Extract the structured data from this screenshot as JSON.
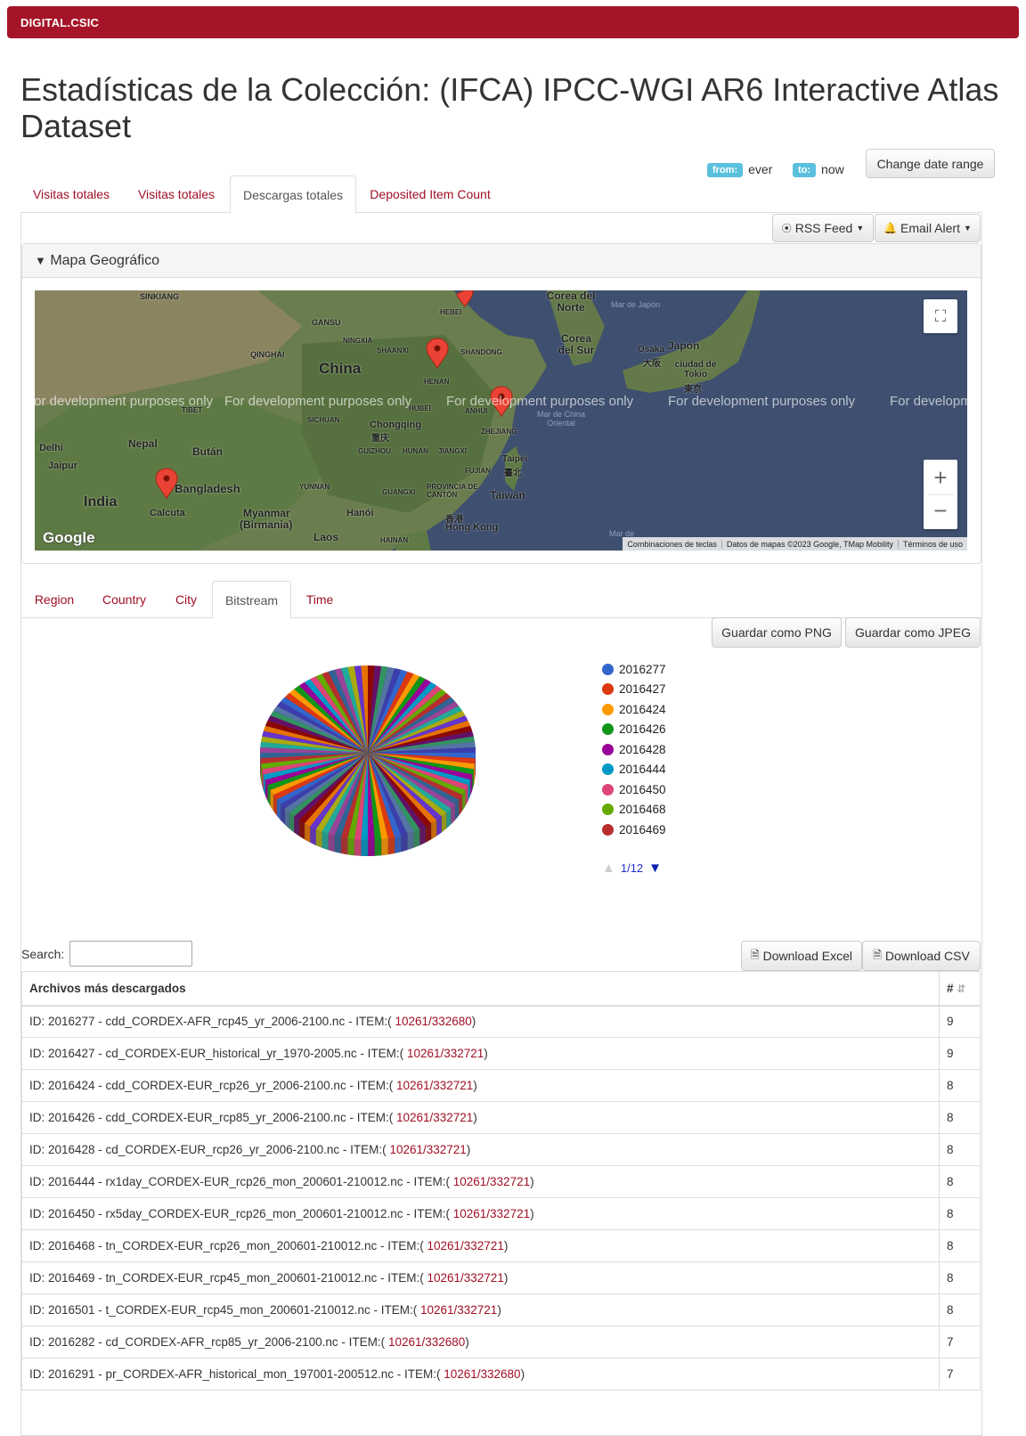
{
  "brand": "DIGITAL.CSIC",
  "page_title": "Estadísticas de la Colección: (IFCA) IPCC-WGI AR6 Interactive Atlas Dataset",
  "date_range": {
    "from_label": "from:",
    "from_value": "ever",
    "to_label": "to:",
    "to_value": "now",
    "change_button": "Change date range"
  },
  "main_tabs": [
    "Visitas totales",
    "Visitas totales",
    "Descargas totales",
    "Deposited Item Count"
  ],
  "toolbar": {
    "rss": "RSS Feed",
    "email": "Email Alert"
  },
  "geo_panel": {
    "title": "Mapa Geográfico",
    "dev_text": "For development purposes only",
    "attribution": [
      "Combinaciones de teclas",
      "Datos de mapas ©2023 Google, TMap Mobility",
      "Términos de uso"
    ],
    "google_logo": "Google",
    "labels": [
      "SINKIANG",
      "GANSU",
      "QINGHAI",
      "NINGXIA",
      "SHAANXI",
      "SHANDONG",
      "China",
      "HENAN",
      "HUBEI",
      "ANHUI",
      "ZHEJIANG",
      "SICHUAN",
      "Chongqing",
      "重庆",
      "GUIZHOU",
      "HUNAN",
      "JIANGXI",
      "FUJIAN",
      "Taipéi",
      "臺北",
      "Taiwán",
      "YUNNAN",
      "GUANGXI",
      "PROVINCIA DE CANTÓN",
      "香港",
      "Hong Kong",
      "Hanói",
      "Laos",
      "HAINAN",
      "Myanmar",
      "(Birmania)",
      "Nepal",
      "Bután",
      "Bangladesh",
      "India",
      "Calcuta",
      "Delhi",
      "Jaipur",
      "Corea del Norte",
      "Corea del Sur",
      "Mar de Japón",
      "Japón",
      "Osaka",
      "大阪",
      "ciudad de Tokio",
      "東京",
      "Mar de China Oriental",
      "HEBEI",
      "TIBET",
      "Mar de"
    ]
  },
  "chart_tabs": [
    "Region",
    "Country",
    "City",
    "Bitstream",
    "Time"
  ],
  "chart_buttons": {
    "png": "Guardar como PNG",
    "jpeg": "Guardar como JPEG"
  },
  "chart_data": {
    "type": "pie",
    "categories": [
      "2016277",
      "2016427",
      "2016424",
      "2016426",
      "2016428",
      "2016444",
      "2016450",
      "2016468",
      "2016469"
    ],
    "colors": [
      "#3366cc",
      "#dc3912",
      "#ff9900",
      "#109618",
      "#990099",
      "#0099c6",
      "#dd4477",
      "#66aa00",
      "#b82e2e"
    ],
    "legend_page": "1/12",
    "legend_position": "right"
  },
  "table": {
    "search_label": "Search:",
    "download_excel": "Download Excel",
    "download_csv": "Download CSV",
    "header": {
      "name": "Archivos más descargados",
      "count": "#"
    },
    "rows": [
      {
        "text": "ID: 2016277 - cdd_CORDEX-AFR_rcp45_yr_2006-2100.nc - ITEM:( ",
        "link": "10261/332680",
        "close": ")",
        "count": "9"
      },
      {
        "text": "ID: 2016427 - cd_CORDEX-EUR_historical_yr_1970-2005.nc - ITEM:( ",
        "link": "10261/332721",
        "close": ")",
        "count": "9"
      },
      {
        "text": "ID: 2016424 - cdd_CORDEX-EUR_rcp26_yr_2006-2100.nc - ITEM:( ",
        "link": "10261/332721",
        "close": ")",
        "count": "8"
      },
      {
        "text": "ID: 2016426 - cdd_CORDEX-EUR_rcp85_yr_2006-2100.nc - ITEM:( ",
        "link": "10261/332721",
        "close": ")",
        "count": "8"
      },
      {
        "text": "ID: 2016428 - cd_CORDEX-EUR_rcp26_yr_2006-2100.nc - ITEM:( ",
        "link": "10261/332721",
        "close": ")",
        "count": "8"
      },
      {
        "text": "ID: 2016444 - rx1day_CORDEX-EUR_rcp26_mon_200601-210012.nc - ITEM:( ",
        "link": "10261/332721",
        "close": ")",
        "count": "8"
      },
      {
        "text": "ID: 2016450 - rx5day_CORDEX-EUR_rcp26_mon_200601-210012.nc - ITEM:( ",
        "link": "10261/332721",
        "close": ")",
        "count": "8"
      },
      {
        "text": "ID: 2016468 - tn_CORDEX-EUR_rcp26_mon_200601-210012.nc - ITEM:( ",
        "link": "10261/332721",
        "close": ")",
        "count": "8"
      },
      {
        "text": "ID: 2016469 - tn_CORDEX-EUR_rcp45_mon_200601-210012.nc - ITEM:( ",
        "link": "10261/332721",
        "close": ")",
        "count": "8"
      },
      {
        "text": "ID: 2016501 - t_CORDEX-EUR_rcp45_mon_200601-210012.nc - ITEM:( ",
        "link": "10261/332721",
        "close": ")",
        "count": "8"
      },
      {
        "text": "ID: 2016282 - cd_CORDEX-AFR_rcp85_yr_2006-2100.nc - ITEM:( ",
        "link": "10261/332680",
        "close": ")",
        "count": "7"
      },
      {
        "text": "ID: 2016291 - pr_CORDEX-AFR_historical_mon_197001-200512.nc - ITEM:( ",
        "link": "10261/332680",
        "close": ")",
        "count": "7"
      }
    ]
  }
}
